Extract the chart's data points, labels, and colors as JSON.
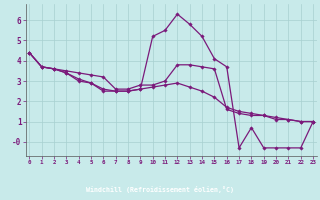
{
  "xlabel": "Windchill (Refroidissement éolien,°C)",
  "background_color": "#c8eaea",
  "line_color": "#7b1a7b",
  "grid_color": "#a8d0d0",
  "axis_bar_color": "#3a006a",
  "x_ticks": [
    0,
    1,
    2,
    3,
    4,
    5,
    6,
    7,
    8,
    9,
    10,
    11,
    12,
    13,
    14,
    15,
    16,
    17,
    18,
    19,
    20,
    21,
    22,
    23
  ],
  "y_ticks": [
    0,
    1,
    2,
    3,
    4,
    5,
    6
  ],
  "y_tick_labels": [
    "-0",
    "1",
    "2",
    "3",
    "4",
    "5",
    "6"
  ],
  "ylim": [
    -0.7,
    6.8
  ],
  "xlim": [
    -0.3,
    23.3
  ],
  "series": [
    [
      4.4,
      3.7,
      3.6,
      3.5,
      3.4,
      3.3,
      3.2,
      2.6,
      2.6,
      2.8,
      2.8,
      3.0,
      3.8,
      3.8,
      3.7,
      3.6,
      1.6,
      1.4,
      1.3,
      1.3,
      1.2,
      1.1,
      1.0,
      1.0
    ],
    [
      4.4,
      3.7,
      3.6,
      3.4,
      3.0,
      2.9,
      2.5,
      2.5,
      2.5,
      2.6,
      5.2,
      5.5,
      6.3,
      5.8,
      5.2,
      4.1,
      3.7,
      -0.3,
      0.7,
      -0.3,
      -0.3,
      -0.3,
      -0.3,
      1.0
    ],
    [
      4.4,
      3.7,
      3.6,
      3.4,
      3.1,
      2.9,
      2.6,
      2.5,
      2.5,
      2.6,
      2.7,
      2.8,
      2.9,
      2.7,
      2.5,
      2.2,
      1.7,
      1.5,
      1.4,
      1.3,
      1.1,
      1.1,
      1.0,
      1.0
    ]
  ]
}
